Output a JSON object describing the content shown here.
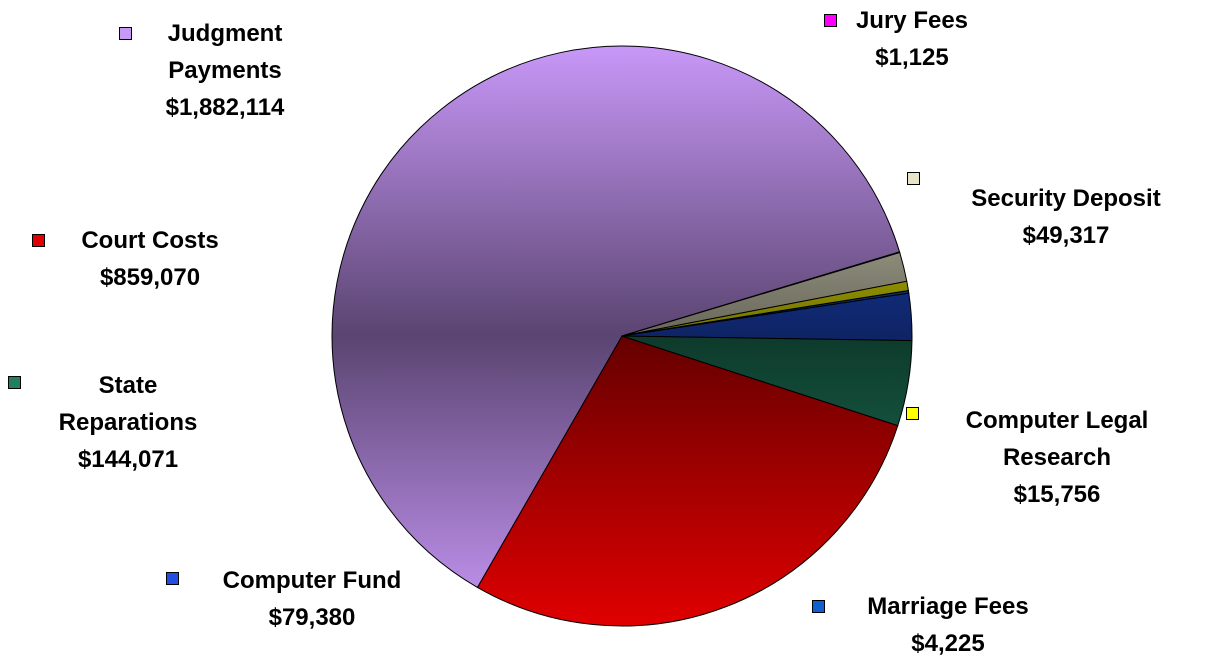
{
  "chart_data": {
    "type": "pie",
    "labels": [
      "Court Costs",
      "Judgment Payments",
      "Jury Fees",
      "Security Deposit",
      "Computer Legal Research",
      "Marriage Fees",
      "Computer Fund",
      "State Reparations"
    ],
    "values": [
      859070,
      1882114,
      1125,
      49317,
      15756,
      4225,
      79380,
      144071
    ],
    "value_labels": [
      "$859,070",
      "$1,882,114",
      "$1,125",
      "$49,317",
      "$15,756",
      "$4,225",
      "$79,380",
      "$144,071"
    ],
    "colors": [
      "#e00000",
      "#c898f8",
      "#ff00ff",
      "#e8e4c8",
      "#ffff00",
      "#1060d0",
      "#2050e0",
      "#208060"
    ]
  }
}
